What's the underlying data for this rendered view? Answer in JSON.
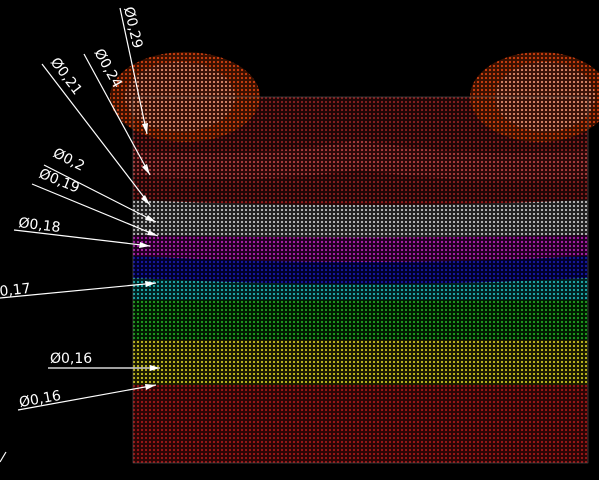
{
  "labels": [
    "Ø0,29",
    "Ø0,24",
    "Ø0,21",
    "Ø0,2",
    "Ø0,19",
    "Ø0,18",
    "0,17",
    "Ø0,16",
    "Ø0,16"
  ]
}
